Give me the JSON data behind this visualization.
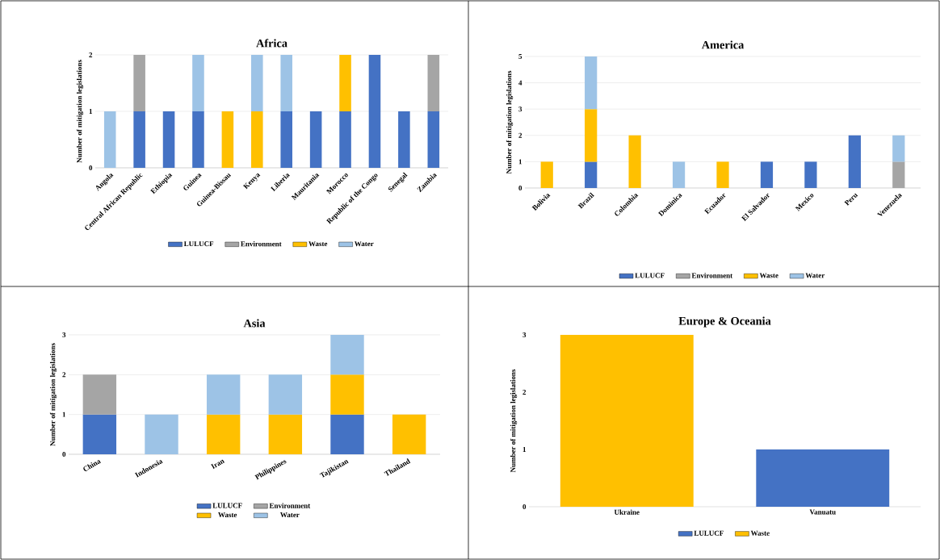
{
  "chart_data": [
    {
      "type": "bar",
      "stacked": true,
      "title": "Africa",
      "ylabel": "Number of mitigation legislations",
      "categories": [
        "Angola",
        "Central African Republic",
        "Ethiopia",
        "Guinea",
        "Guinea-Bissau",
        "Kenya",
        "Liberia",
        "Mauritania",
        "Morocco",
        "Republic of the Congo",
        "Senegal",
        "Zambia"
      ],
      "ylim": [
        0,
        2
      ],
      "yticks": [
        0,
        1,
        2
      ],
      "grid": "y",
      "legend": "bottom",
      "series": [
        {
          "name": "LULUCF",
          "color": "#4472c4",
          "values": [
            null,
            1,
            1,
            1,
            null,
            null,
            1,
            1,
            1,
            2,
            1,
            1
          ]
        },
        {
          "name": "Environment",
          "color": "#a5a5a5",
          "values": [
            null,
            1,
            null,
            null,
            null,
            null,
            null,
            null,
            null,
            null,
            null,
            1
          ]
        },
        {
          "name": "Waste",
          "color": "#ffc000",
          "values": [
            null,
            null,
            null,
            null,
            1,
            1,
            null,
            null,
            1,
            null,
            null,
            null
          ]
        },
        {
          "name": "Water",
          "color": "#9dc3e6",
          "values": [
            1,
            null,
            null,
            1,
            null,
            1,
            1,
            null,
            null,
            null,
            null,
            null
          ]
        }
      ]
    },
    {
      "type": "bar",
      "stacked": true,
      "title": "America",
      "ylabel": "Number of mitigation legislations",
      "categories": [
        "Bolivia",
        "Brazil",
        "Colombia",
        "Dominica",
        "Ecuador",
        "El Salvador",
        "Mexico",
        "Peru",
        "Venezuela"
      ],
      "ylim": [
        0,
        5
      ],
      "yticks": [
        0,
        1,
        2,
        3,
        4,
        5
      ],
      "grid": "y",
      "legend": "bottom",
      "series": [
        {
          "name": "LULUCF",
          "color": "#4472c4",
          "values": [
            null,
            1,
            null,
            null,
            null,
            1,
            1,
            2,
            null
          ]
        },
        {
          "name": "Environment",
          "color": "#a5a5a5",
          "values": [
            null,
            null,
            null,
            null,
            null,
            null,
            null,
            null,
            1
          ]
        },
        {
          "name": "Waste",
          "color": "#ffc000",
          "values": [
            1,
            2,
            2,
            null,
            1,
            null,
            null,
            null,
            null
          ]
        },
        {
          "name": "Water",
          "color": "#9dc3e6",
          "values": [
            null,
            2,
            null,
            1,
            null,
            null,
            null,
            null,
            1
          ]
        }
      ]
    },
    {
      "type": "bar",
      "stacked": true,
      "title": "Asia",
      "ylabel": "Number of mitigation legislations",
      "categories": [
        "China",
        "Indonesia",
        "Iran",
        "Philippines",
        "Tajikistan",
        "Thailand"
      ],
      "ylim": [
        0,
        3
      ],
      "yticks": [
        0,
        1,
        2,
        3
      ],
      "grid": "y",
      "legend": "bottom",
      "series": [
        {
          "name": "LULUCF",
          "color": "#4472c4",
          "values": [
            1,
            null,
            null,
            null,
            1,
            null
          ]
        },
        {
          "name": "Environment",
          "color": "#a5a5a5",
          "values": [
            1,
            null,
            null,
            null,
            null,
            null
          ]
        },
        {
          "name": "Waste",
          "color": "#ffc000",
          "values": [
            null,
            null,
            1,
            1,
            1,
            1
          ]
        },
        {
          "name": "Water",
          "color": "#9dc3e6",
          "values": [
            null,
            1,
            1,
            1,
            1,
            null
          ]
        }
      ]
    },
    {
      "type": "bar",
      "stacked": true,
      "title": "Europe & Oceania",
      "ylabel": "Number of mitigation legislations",
      "categories": [
        "Ukraine",
        "Vanuatu"
      ],
      "ylim": [
        0,
        3
      ],
      "yticks": [
        0,
        1,
        2,
        3
      ],
      "legend": "bottom",
      "series": [
        {
          "name": "LULUCF",
          "color": "#4472c4",
          "values": [
            null,
            1
          ]
        },
        {
          "name": "Waste",
          "color": "#ffc000",
          "values": [
            3,
            null
          ]
        }
      ]
    }
  ]
}
